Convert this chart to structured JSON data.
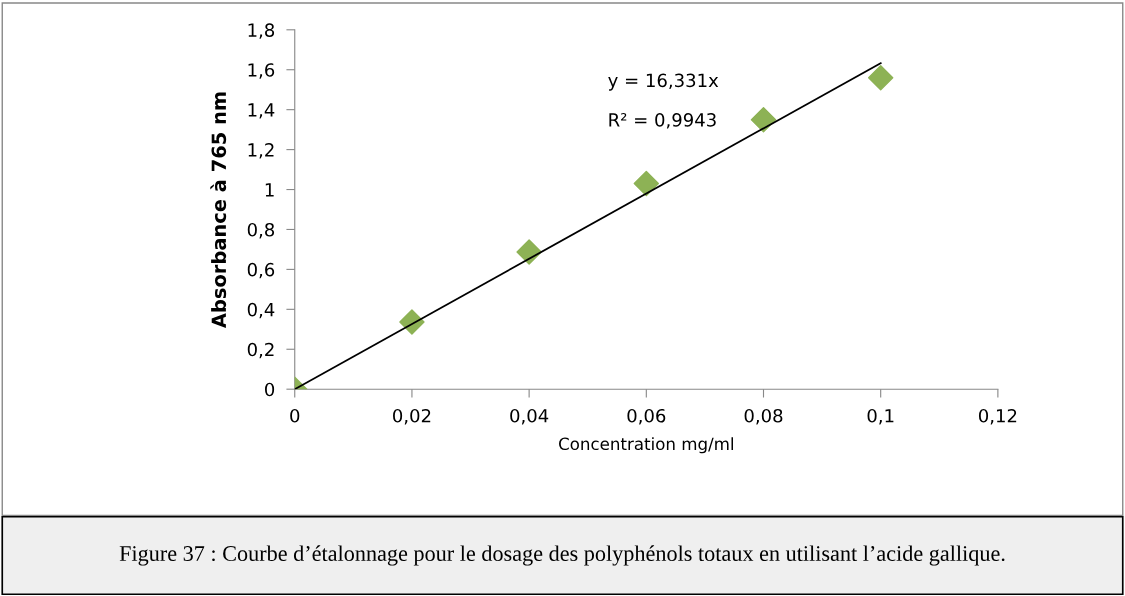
{
  "chart_data": {
    "type": "scatter",
    "xlabel": "Concentration mg/ml",
    "ylabel": "Absorbance à 765 nm",
    "series": [
      {
        "color": "#8db255",
        "marker": "diamond",
        "x": [
          0,
          0.02,
          0.04,
          0.06,
          0.08,
          0.1
        ],
        "values": [
          0,
          0.336,
          0.687,
          1.03,
          1.35,
          1.56
        ]
      },
      {
        "type": "line",
        "color": "#000000",
        "marker": "none",
        "line_style": "solid",
        "x": [
          0,
          0.1
        ],
        "values": [
          0,
          1.633
        ]
      }
    ],
    "xlim": [
      0,
      0.12
    ],
    "ylim": [
      0,
      1.8
    ],
    "xticks": [
      0,
      {
        "value": 0.02,
        "label": "0,02"
      },
      {
        "value": 0.04,
        "label": "0,04"
      },
      {
        "value": 0.06,
        "label": "0,06"
      },
      {
        "value": 0.08,
        "label": "0,08"
      },
      {
        "value": 0.1,
        "label": "0,1"
      },
      {
        "value": 0.12,
        "label": "0,12"
      }
    ],
    "yticks": [
      0,
      {
        "value": 0.2,
        "label": "0,2"
      },
      {
        "value": 0.4,
        "label": "0,4"
      },
      {
        "value": 0.6,
        "label": "0,6"
      },
      {
        "value": 0.8,
        "label": "0,8"
      },
      1,
      {
        "value": 1.2,
        "label": "1,2"
      },
      {
        "value": 1.4,
        "label": "1,4"
      },
      {
        "value": 1.6,
        "label": "1,6"
      },
      {
        "value": 1.8,
        "label": "1,8"
      }
    ],
    "grid": false,
    "legend": false,
    "annotations": [
      "y = 16,331x",
      "R² = 0,9943",
      "Figure 37 : Courbe d’étalonnage pour le dosage des polyphénols totaux en utilisant l’acide gallique."
    ]
  }
}
